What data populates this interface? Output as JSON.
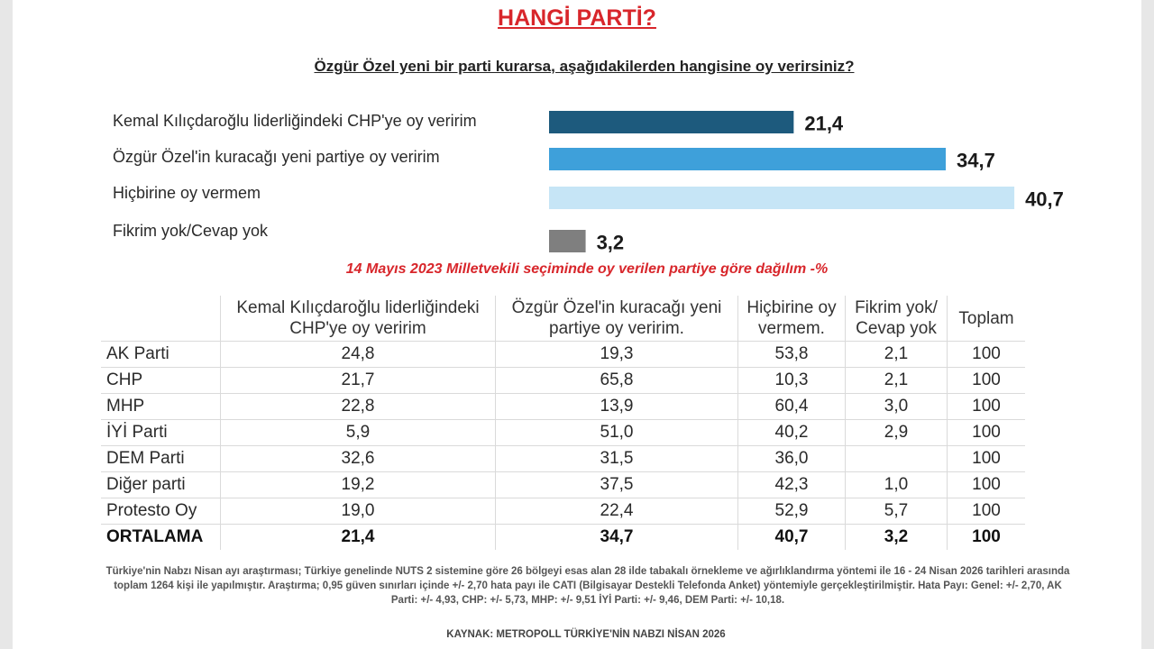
{
  "title": "HANGİ PARTİ?",
  "question": "Özgür Özel yeni bir parti kurarsa, aşağıdakilerden hangisine oy verirsiniz?",
  "chart_data": {
    "type": "bar",
    "orientation": "horizontal",
    "categories": [
      "Kemal Kılıçdaroğlu liderliğindeki CHP'ye oy veririm",
      "Özgür Özel'in kuracağı yeni partiye oy veririm",
      "Hiçbirine oy vermem",
      "Fikrim yok/Cevap yok"
    ],
    "values": [
      21.4,
      34.7,
      40.7,
      3.2
    ],
    "value_labels": [
      "21,4",
      "34,7",
      "40,7",
      "3,2"
    ],
    "colors": [
      "#1d5a7d",
      "#3ea0da",
      "#c6e5f6",
      "#7f7f7f"
    ],
    "grid": false,
    "legend": "none"
  },
  "table": {
    "subtitle": "14 Mayıs 2023 Milletvekili seçiminde oy verilen partiye göre dağılım -%",
    "headers": [
      "",
      "Kemal Kılıçdaroğlu liderliğindeki CHP'ye oy veririm",
      "Özgür Özel'in kuracağı yeni partiye oy veririm.",
      "Hiçbirine oy vermem.",
      "Fikrim yok/ Cevap yok",
      "Toplam"
    ],
    "rows": [
      [
        "AK Parti",
        "24,8",
        "19,3",
        "53,8",
        "2,1",
        "100"
      ],
      [
        "CHP",
        "21,7",
        "65,8",
        "10,3",
        "2,1",
        "100"
      ],
      [
        "MHP",
        "22,8",
        "13,9",
        "60,4",
        "3,0",
        "100"
      ],
      [
        "İYİ Parti",
        "5,9",
        "51,0",
        "40,2",
        "2,9",
        "100"
      ],
      [
        "DEM Parti",
        "32,6",
        "31,5",
        "36,0",
        "",
        "100"
      ],
      [
        "Diğer parti",
        "19,2",
        "37,5",
        "42,3",
        "1,0",
        "100"
      ],
      [
        "Protesto Oy",
        "19,0",
        "22,4",
        "52,9",
        "5,7",
        "100"
      ],
      [
        "ORTALAMA",
        "21,4",
        "34,7",
        "40,7",
        "3,2",
        "100"
      ]
    ]
  },
  "footnote": "Türkiye'nin Nabzı Nisan ayı araştırması; Türkiye genelinde NUTS 2 sistemine göre 26 bölgeyi esas alan 28 ilde tabakalı örnekleme ve ağırlıklandırma yöntemi ile 16 - 24 Nisan 2026 tarihleri arasında toplam 1264 kişi ile yapılmıştır. Araştırma; 0,95 güven sınırları içinde +/- 2,70 hata payı ile CATI (Bilgisayar Destekli Telefonda Anket) yöntemiyle gerçekleştirilmiştir. Hata Payı: Genel: +/- 2,70, AK Parti: +/- 4,93, CHP: +/- 5,73, MHP: +/- 9,51 İYİ Parti: +/- 9,46, DEM Parti: +/- 10,18.",
  "source": "KAYNAK: METROPOLL TÜRKİYE'NİN NABZI NİSAN 2026"
}
